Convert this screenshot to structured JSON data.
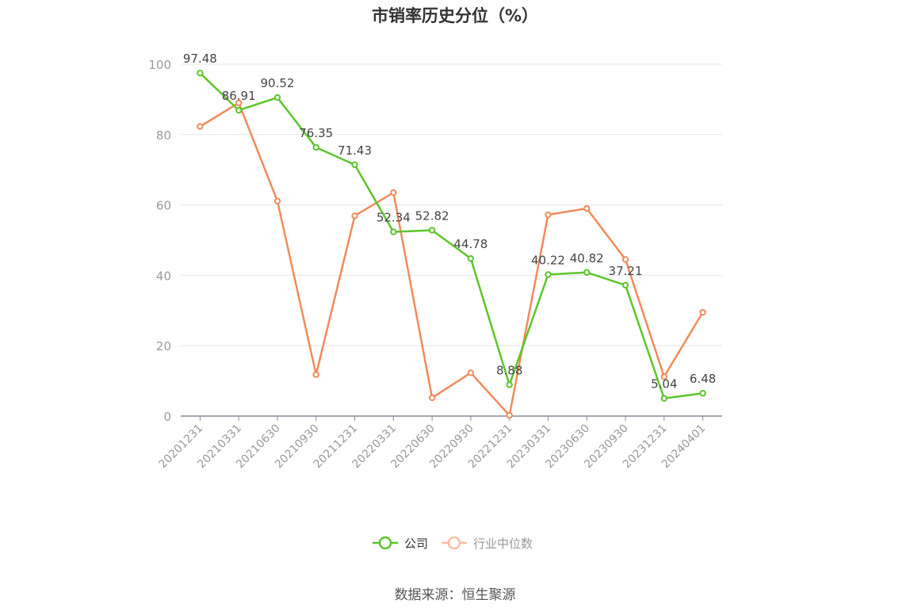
{
  "chart_data": {
    "type": "line",
    "title": "市销率历史分位（%）",
    "categories": [
      "20201231",
      "20210331",
      "20210630",
      "20210930",
      "20211231",
      "20220331",
      "20220630",
      "20220930",
      "20221231",
      "20230331",
      "20230630",
      "20230930",
      "20231231",
      "20240401"
    ],
    "series": [
      {
        "name": "公司",
        "color": "#5cc62c",
        "values": [
          97.48,
          86.91,
          90.52,
          76.35,
          71.43,
          52.34,
          52.82,
          44.78,
          8.88,
          40.22,
          40.82,
          37.21,
          5.04,
          6.48
        ],
        "labels": [
          "97.48",
          "86.91",
          "90.52",
          "76.35",
          "71.43",
          "52.34",
          "52.82",
          "44.78",
          "8.88",
          "40.22",
          "40.82",
          "37.21",
          "5.04",
          "6.48"
        ]
      },
      {
        "name": "行业中位数",
        "color": "#f28b5a",
        "values": [
          82.3,
          89.0,
          61.1,
          11.8,
          56.9,
          63.5,
          5.2,
          12.3,
          0.2,
          57.2,
          59.0,
          44.5,
          11.2,
          29.5
        ]
      }
    ],
    "ylim": [
      0,
      100
    ],
    "yticks": [
      0,
      20,
      40,
      60,
      80,
      100
    ],
    "grid": true,
    "legend_position": "bottom"
  },
  "source_text": "数据来源：恒生聚源"
}
